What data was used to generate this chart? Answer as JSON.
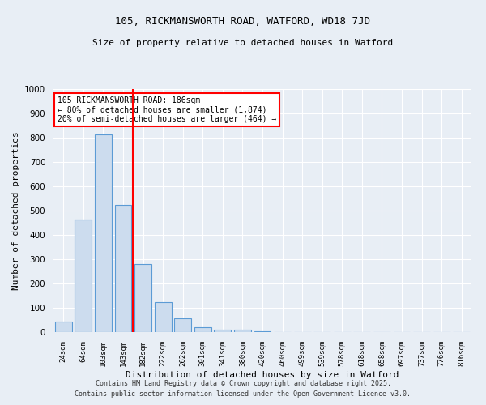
{
  "title1": "105, RICKMANSWORTH ROAD, WATFORD, WD18 7JD",
  "title2": "Size of property relative to detached houses in Watford",
  "xlabel": "Distribution of detached houses by size in Watford",
  "ylabel": "Number of detached properties",
  "categories": [
    "24sqm",
    "64sqm",
    "103sqm",
    "143sqm",
    "182sqm",
    "222sqm",
    "262sqm",
    "301sqm",
    "341sqm",
    "380sqm",
    "420sqm",
    "460sqm",
    "499sqm",
    "539sqm",
    "578sqm",
    "618sqm",
    "658sqm",
    "697sqm",
    "737sqm",
    "776sqm",
    "816sqm"
  ],
  "values": [
    45,
    465,
    815,
    525,
    280,
    125,
    57,
    20,
    10,
    10,
    5,
    0,
    0,
    0,
    0,
    0,
    0,
    0,
    0,
    0,
    0
  ],
  "bar_color": "#ccdcee",
  "bar_edge_color": "#5b9bd5",
  "red_line_x": 3.5,
  "annotation_text": "105 RICKMANSWORTH ROAD: 186sqm\n← 80% of detached houses are smaller (1,874)\n20% of semi-detached houses are larger (464) →",
  "annotation_box_color": "white",
  "annotation_box_edge_color": "red",
  "ylim": [
    0,
    1000
  ],
  "yticks": [
    0,
    100,
    200,
    300,
    400,
    500,
    600,
    700,
    800,
    900,
    1000
  ],
  "bg_color": "#e8eef5",
  "grid_color": "white",
  "footer1": "Contains HM Land Registry data © Crown copyright and database right 2025.",
  "footer2": "Contains public sector information licensed under the Open Government Licence v3.0."
}
